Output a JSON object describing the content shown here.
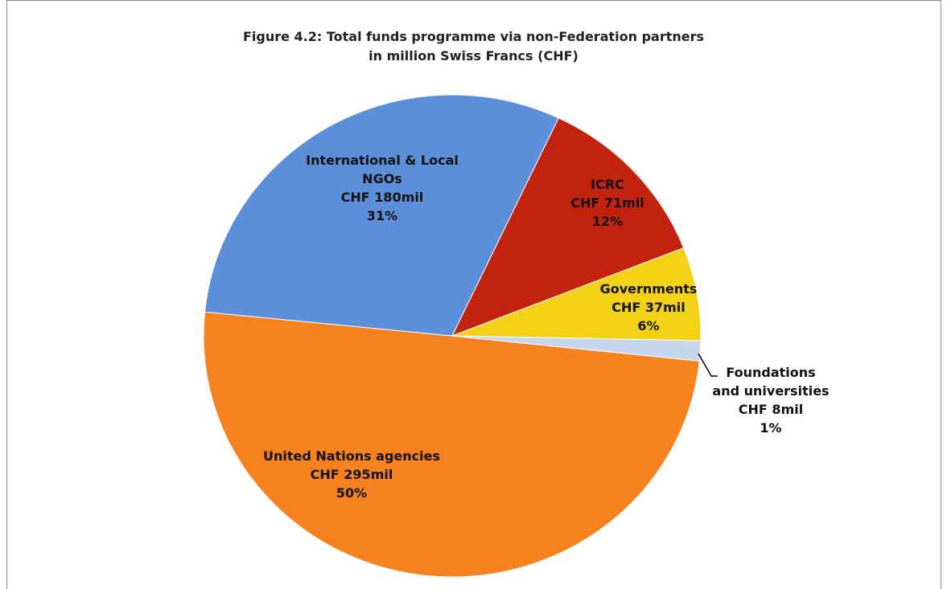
{
  "chart_data": {
    "type": "pie",
    "title": "Figure 4.2: Total funds programme via non-Federation partners",
    "subtitle": "in million Swiss Francs (CHF)",
    "categories": [
      "United Nations agencies",
      "International & Local NGOs",
      "ICRC",
      "Governments",
      "Foundations and universities"
    ],
    "values": [
      295,
      180,
      71,
      37,
      8
    ],
    "value_labels": [
      "CHF 295mil",
      "CHF 180mil",
      "CHF 71mil",
      "CHF 37mil",
      "CHF 8mil"
    ],
    "percentages": [
      50,
      31,
      12,
      6,
      1
    ],
    "percentage_labels": [
      "50%",
      "31%",
      "12%",
      "6%",
      "1%"
    ],
    "colors": [
      "#f5821f",
      "#5b8fd9",
      "#c2230f",
      "#f2d116",
      "#c6d6ec"
    ]
  }
}
